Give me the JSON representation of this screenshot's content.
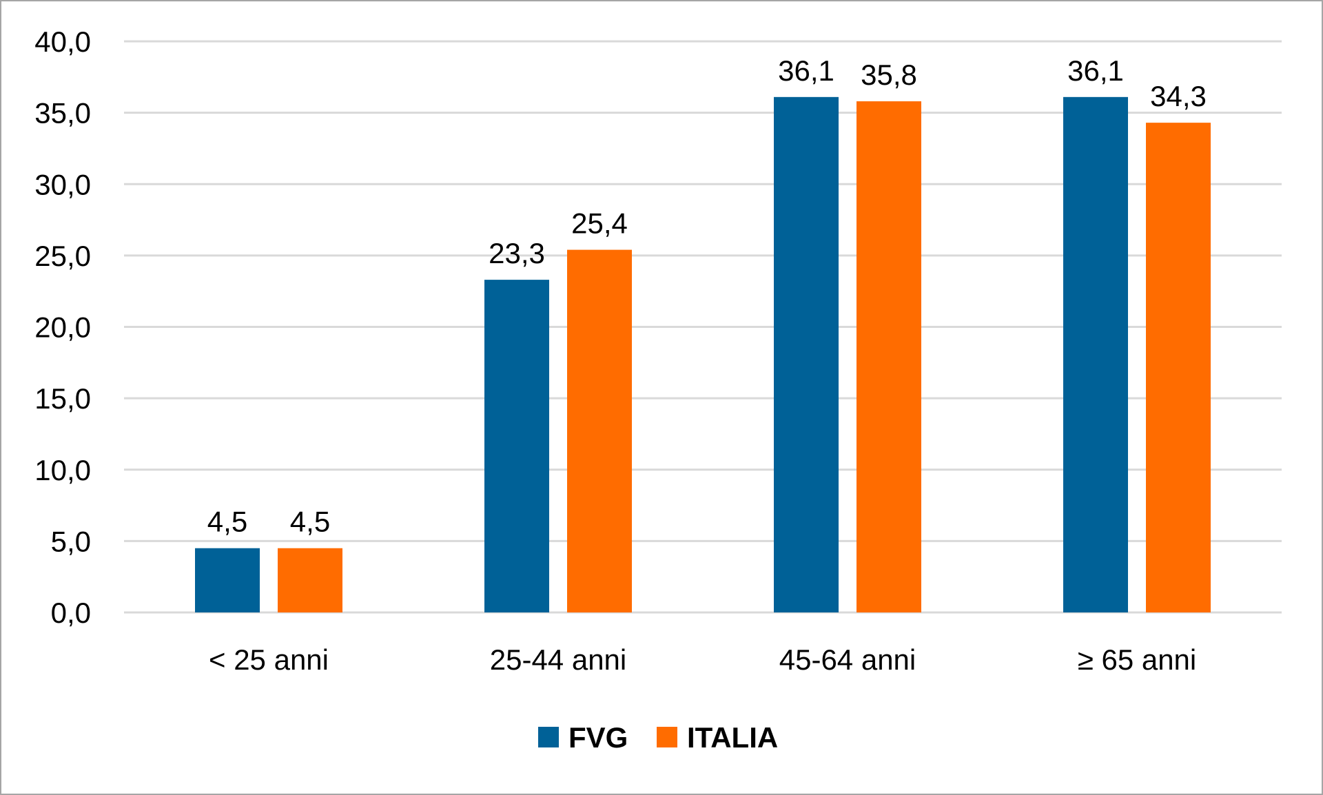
{
  "chart_data": {
    "type": "bar",
    "title": "",
    "xlabel": "",
    "ylabel": "",
    "categories": [
      "< 25 anni",
      "25-44 anni",
      "45-64 anni",
      "≥ 65 anni"
    ],
    "series": [
      {
        "name": "FVG",
        "color": "#006197",
        "values": [
          4.5,
          23.3,
          36.1,
          36.1
        ],
        "labels": [
          "4,5",
          "23,3",
          "36,1",
          "36,1"
        ]
      },
      {
        "name": "ITALIA",
        "color": "#ff6c00",
        "values": [
          4.5,
          25.4,
          35.8,
          34.3
        ],
        "labels": [
          "4,5",
          "25,4",
          "35,8",
          "34,3"
        ]
      }
    ],
    "ylim": [
      0,
      40
    ],
    "yticks": [
      0,
      5,
      10,
      15,
      20,
      25,
      30,
      35,
      40
    ],
    "ytick_labels": [
      "0,0",
      "5,0",
      "10,0",
      "15,0",
      "20,0",
      "25,0",
      "30,0",
      "35,0",
      "40,0"
    ],
    "grid": true,
    "gridline_color": "#d9d9d9",
    "legend": "bottom"
  }
}
